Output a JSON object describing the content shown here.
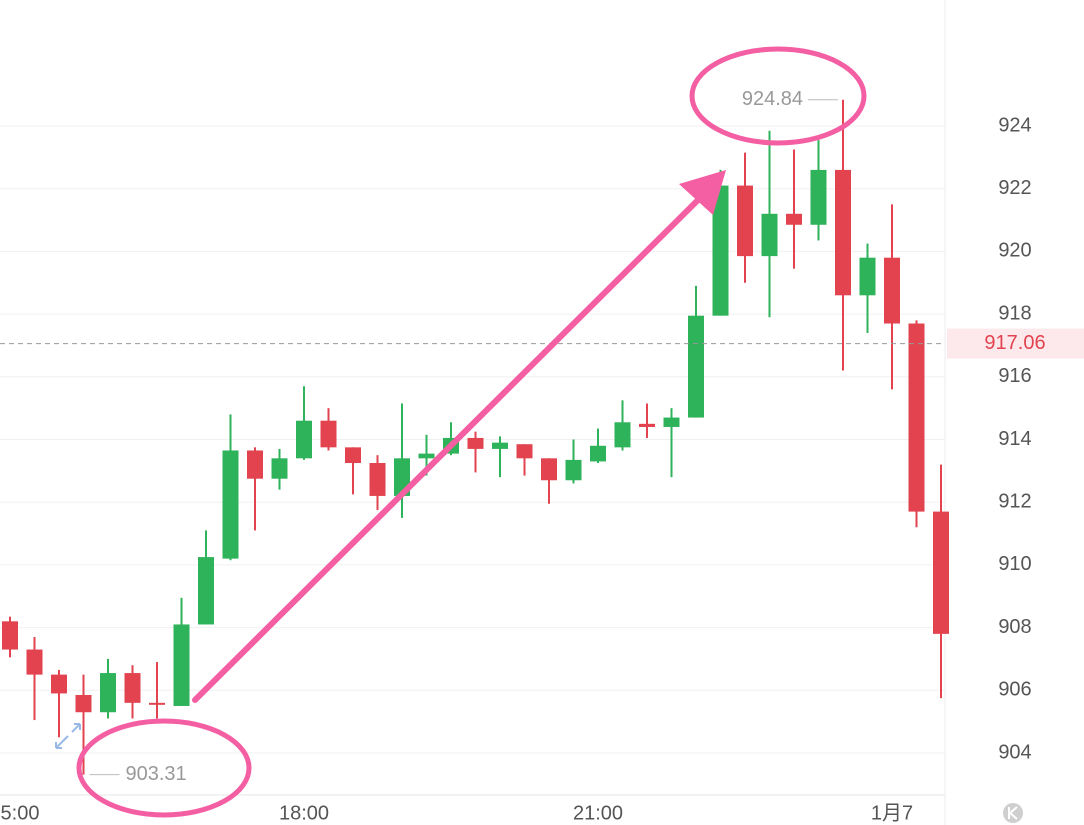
{
  "chart_data": {
    "type": "candlestick",
    "categories": [
      "5:00",
      null,
      null,
      null,
      null,
      null,
      null,
      null,
      null,
      null,
      null,
      null,
      "18:00",
      null,
      null,
      null,
      null,
      null,
      null,
      null,
      null,
      null,
      null,
      null,
      "21:00",
      null,
      null,
      null,
      null,
      null,
      null,
      null,
      null,
      null,
      null,
      null,
      "1月7",
      null,
      null
    ],
    "open": [
      908.2,
      907.3,
      906.5,
      905.85,
      905.3,
      906.55,
      905.6,
      905.5,
      908.1,
      910.2,
      913.65,
      912.75,
      913.4,
      914.6,
      913.75,
      913.25,
      912.2,
      913.4,
      913.55,
      914.05,
      913.7,
      913.85,
      913.4,
      912.7,
      913.3,
      913.75,
      914.5,
      914.4,
      914.7,
      917.95,
      922.1,
      919.85,
      921.2,
      920.85,
      922.6,
      918.6,
      919.8,
      917.7,
      911.7
    ],
    "high": [
      908.35,
      907.7,
      906.65,
      906.5,
      907.0,
      906.8,
      906.9,
      908.95,
      911.1,
      914.8,
      913.75,
      913.7,
      915.7,
      915.0,
      913.75,
      913.5,
      915.15,
      914.15,
      914.55,
      914.25,
      914.1,
      913.85,
      913.4,
      914.0,
      914.35,
      915.25,
      915.15,
      915.0,
      918.9,
      922.6,
      923.15,
      923.85,
      923.25,
      923.55,
      924.84,
      920.25,
      921.5,
      917.8,
      913.2
    ],
    "low": [
      907.05,
      905.05,
      904.5,
      903.31,
      905.1,
      905.1,
      905.1,
      905.5,
      908.1,
      910.15,
      911.1,
      912.4,
      913.35,
      913.65,
      912.25,
      911.75,
      911.5,
      912.85,
      913.5,
      912.95,
      912.8,
      912.85,
      911.95,
      912.6,
      913.25,
      913.65,
      914.05,
      912.8,
      914.7,
      917.95,
      919.0,
      917.9,
      919.45,
      920.35,
      916.2,
      917.4,
      915.6,
      911.2,
      905.75
    ],
    "close": [
      907.3,
      906.5,
      905.9,
      905.3,
      906.55,
      905.6,
      905.55,
      908.1,
      910.25,
      913.65,
      912.75,
      913.4,
      914.6,
      913.75,
      913.25,
      912.2,
      913.4,
      913.55,
      914.05,
      913.7,
      913.9,
      913.4,
      912.7,
      913.35,
      913.8,
      914.55,
      914.4,
      914.7,
      917.95,
      922.1,
      919.85,
      921.2,
      920.85,
      922.6,
      918.6,
      919.8,
      917.7,
      911.7,
      907.8
    ],
    "up_color": "#2fb35a",
    "down_color": "#e2434f",
    "last_price": 917.06,
    "ylim": [
      902.66,
      928.02
    ],
    "yticks": [
      904,
      906,
      908,
      910,
      912,
      914,
      916,
      918,
      920,
      922,
      924
    ],
    "grid": true
  }
}
